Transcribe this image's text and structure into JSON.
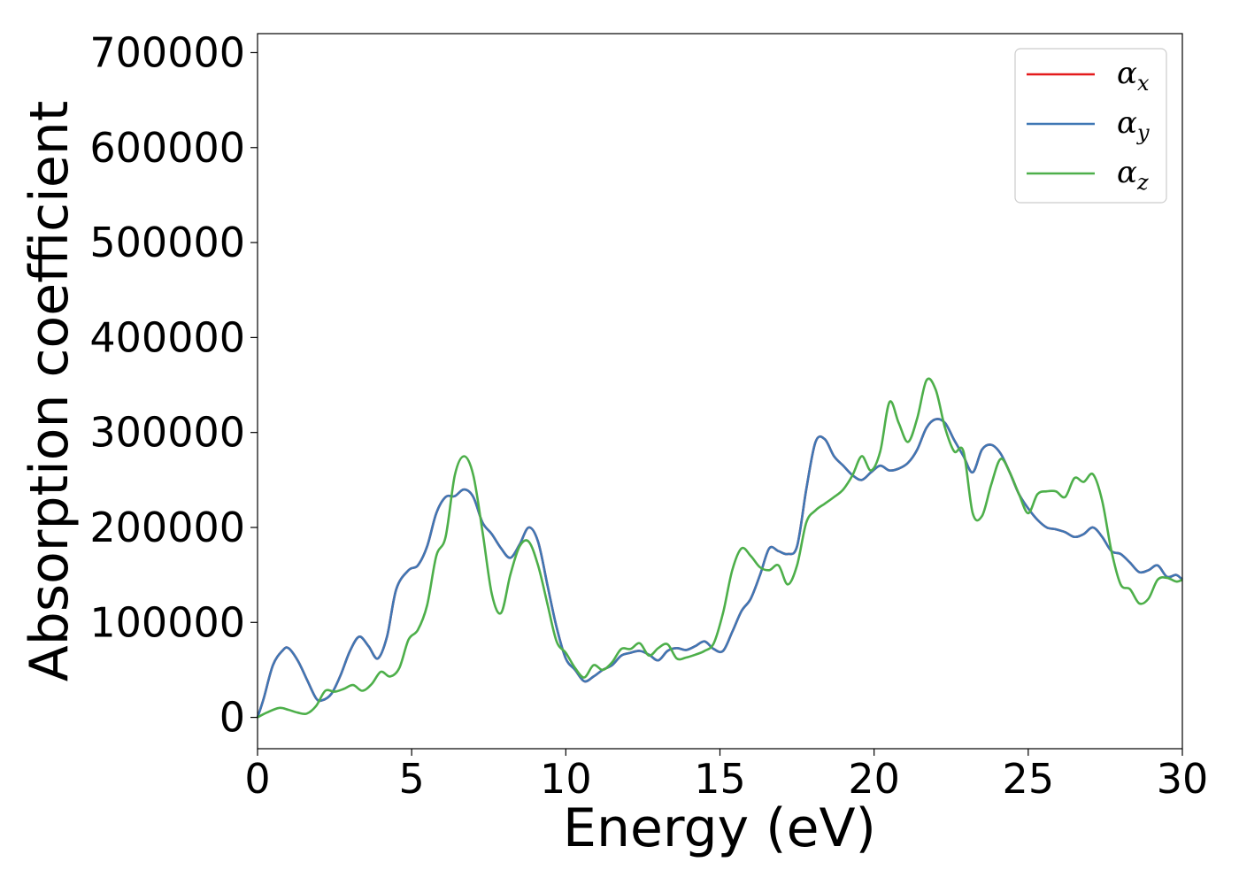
{
  "chart_data": {
    "type": "line",
    "xlabel": "Energy (eV)",
    "ylabel": "Absorption coefficient",
    "xlim": [
      0,
      30
    ],
    "ylim": [
      -33000,
      720000
    ],
    "xticks": [
      0,
      5,
      10,
      15,
      20,
      25,
      30
    ],
    "xtick_labels": [
      "0",
      "5",
      "10",
      "15",
      "20",
      "25",
      "30"
    ],
    "yticks": [
      0,
      100000,
      200000,
      300000,
      400000,
      500000,
      600000,
      700000
    ],
    "ytick_labels": [
      "0",
      "100000",
      "200000",
      "300000",
      "400000",
      "500000",
      "600000",
      "700000"
    ],
    "grid": false,
    "legend_position": "top-right",
    "series": [
      {
        "name": "α_x",
        "symbol": "α",
        "subscript": "x",
        "color": "#e41a1c",
        "x": [
          0,
          0.2,
          0.5,
          0.8,
          1.0,
          1.3,
          1.6,
          1.9,
          2.1,
          2.4,
          2.7,
          3.0,
          3.3,
          3.6,
          3.9,
          4.2,
          4.5,
          4.9,
          5.2,
          5.5,
          5.8,
          6.1,
          6.4,
          6.7,
          7.0,
          7.3,
          7.6,
          7.9,
          8.2,
          8.5,
          8.8,
          9.1,
          9.4,
          9.7,
          10.0,
          10.3,
          10.6,
          10.9,
          11.2,
          11.5,
          11.8,
          12.1,
          12.4,
          12.7,
          13.0,
          13.3,
          13.6,
          13.9,
          14.2,
          14.5,
          14.8,
          15.1,
          15.4,
          15.7,
          16.0,
          16.3,
          16.6,
          16.9,
          17.2,
          17.5,
          17.8,
          18.1,
          18.4,
          18.7,
          19.0,
          19.3,
          19.6,
          19.9,
          20.2,
          20.5,
          20.8,
          21.1,
          21.4,
          21.7,
          22.0,
          22.3,
          22.6,
          22.9,
          23.2,
          23.5,
          23.8,
          24.1,
          24.4,
          24.7,
          25.0,
          25.3,
          25.6,
          25.9,
          26.2,
          26.5,
          26.8,
          27.1,
          27.4,
          27.7,
          28.0,
          28.3,
          28.6,
          28.9,
          29.2,
          29.5,
          29.8,
          30
        ],
        "y": [
          0,
          20000,
          55000,
          70000,
          73000,
          60000,
          40000,
          20000,
          18000,
          25000,
          45000,
          70000,
          85000,
          75000,
          62000,
          85000,
          135000,
          155000,
          160000,
          180000,
          215000,
          232000,
          233000,
          240000,
          232000,
          205000,
          193000,
          178000,
          168000,
          182000,
          200000,
          185000,
          140000,
          95000,
          62000,
          50000,
          38000,
          43000,
          50000,
          55000,
          65000,
          68000,
          70000,
          66000,
          60000,
          70000,
          73000,
          71000,
          75000,
          80000,
          72000,
          70000,
          90000,
          112000,
          125000,
          150000,
          178000,
          175000,
          172000,
          180000,
          240000,
          290000,
          293000,
          275000,
          265000,
          255000,
          250000,
          258000,
          265000,
          260000,
          262000,
          268000,
          282000,
          305000,
          314000,
          310000,
          292000,
          275000,
          258000,
          282000,
          287000,
          278000,
          258000,
          235000,
          220000,
          208000,
          200000,
          198000,
          195000,
          190000,
          193000,
          200000,
          190000,
          175000,
          172000,
          163000,
          153000,
          155000,
          160000,
          148000,
          150000,
          145000
        ]
      },
      {
        "name": "α_y",
        "symbol": "α",
        "subscript": "y",
        "color": "#3f77b4",
        "x": [
          0,
          0.2,
          0.5,
          0.8,
          1.0,
          1.3,
          1.6,
          1.9,
          2.1,
          2.4,
          2.7,
          3.0,
          3.3,
          3.6,
          3.9,
          4.2,
          4.5,
          4.9,
          5.2,
          5.5,
          5.8,
          6.1,
          6.4,
          6.7,
          7.0,
          7.3,
          7.6,
          7.9,
          8.2,
          8.5,
          8.8,
          9.1,
          9.4,
          9.7,
          10.0,
          10.3,
          10.6,
          10.9,
          11.2,
          11.5,
          11.8,
          12.1,
          12.4,
          12.7,
          13.0,
          13.3,
          13.6,
          13.9,
          14.2,
          14.5,
          14.8,
          15.1,
          15.4,
          15.7,
          16.0,
          16.3,
          16.6,
          16.9,
          17.2,
          17.5,
          17.8,
          18.1,
          18.4,
          18.7,
          19.0,
          19.3,
          19.6,
          19.9,
          20.2,
          20.5,
          20.8,
          21.1,
          21.4,
          21.7,
          22.0,
          22.3,
          22.6,
          22.9,
          23.2,
          23.5,
          23.8,
          24.1,
          24.4,
          24.7,
          25.0,
          25.3,
          25.6,
          25.9,
          26.2,
          26.5,
          26.8,
          27.1,
          27.4,
          27.7,
          28.0,
          28.3,
          28.6,
          28.9,
          29.2,
          29.5,
          29.8,
          30
        ],
        "y": [
          0,
          20000,
          55000,
          70000,
          73000,
          60000,
          40000,
          20000,
          18000,
          25000,
          45000,
          70000,
          85000,
          75000,
          62000,
          85000,
          135000,
          155000,
          160000,
          180000,
          215000,
          232000,
          233000,
          240000,
          232000,
          205000,
          193000,
          178000,
          168000,
          182000,
          200000,
          185000,
          140000,
          95000,
          62000,
          50000,
          38000,
          43000,
          50000,
          55000,
          65000,
          68000,
          70000,
          66000,
          60000,
          70000,
          73000,
          71000,
          75000,
          80000,
          72000,
          70000,
          90000,
          112000,
          125000,
          150000,
          178000,
          175000,
          172000,
          180000,
          240000,
          290000,
          293000,
          275000,
          265000,
          255000,
          250000,
          258000,
          265000,
          260000,
          262000,
          268000,
          282000,
          305000,
          314000,
          310000,
          292000,
          275000,
          258000,
          282000,
          287000,
          278000,
          258000,
          235000,
          220000,
          208000,
          200000,
          198000,
          195000,
          190000,
          193000,
          200000,
          190000,
          175000,
          172000,
          163000,
          153000,
          155000,
          160000,
          148000,
          150000,
          145000
        ]
      },
      {
        "name": "α_z",
        "symbol": "α",
        "subscript": "z",
        "color": "#4daf4a",
        "x": [
          0,
          0.3,
          0.7,
          1.0,
          1.3,
          1.6,
          1.9,
          2.2,
          2.5,
          2.8,
          3.1,
          3.4,
          3.7,
          4.0,
          4.3,
          4.6,
          4.9,
          5.2,
          5.5,
          5.8,
          6.1,
          6.4,
          6.7,
          7.0,
          7.3,
          7.6,
          7.9,
          8.2,
          8.5,
          8.8,
          9.1,
          9.4,
          9.7,
          10.0,
          10.3,
          10.6,
          10.9,
          11.2,
          11.5,
          11.8,
          12.1,
          12.4,
          12.7,
          13.0,
          13.3,
          13.6,
          13.9,
          14.2,
          14.5,
          14.8,
          15.1,
          15.4,
          15.7,
          16.0,
          16.3,
          16.6,
          16.9,
          17.2,
          17.5,
          17.8,
          18.1,
          18.4,
          18.7,
          19.0,
          19.3,
          19.6,
          19.9,
          20.2,
          20.5,
          20.8,
          21.1,
          21.4,
          21.7,
          22.0,
          22.3,
          22.6,
          22.9,
          23.2,
          23.5,
          23.8,
          24.1,
          24.4,
          24.7,
          25.0,
          25.3,
          25.6,
          25.9,
          26.2,
          26.5,
          26.8,
          27.1,
          27.4,
          27.7,
          28.0,
          28.3,
          28.6,
          28.9,
          29.2,
          29.5,
          29.8,
          30
        ],
        "y": [
          0,
          5000,
          10000,
          8000,
          5000,
          4000,
          12000,
          28000,
          27000,
          30000,
          34000,
          28000,
          35000,
          48000,
          43000,
          52000,
          82000,
          92000,
          118000,
          170000,
          190000,
          255000,
          275000,
          255000,
          195000,
          130000,
          110000,
          150000,
          180000,
          185000,
          160000,
          120000,
          80000,
          68000,
          52000,
          42000,
          55000,
          50000,
          58000,
          72000,
          72000,
          78000,
          65000,
          73000,
          77000,
          62000,
          63000,
          66000,
          70000,
          78000,
          110000,
          155000,
          178000,
          170000,
          158000,
          155000,
          160000,
          140000,
          160000,
          205000,
          218000,
          225000,
          232000,
          240000,
          255000,
          275000,
          260000,
          280000,
          332000,
          310000,
          290000,
          315000,
          355000,
          345000,
          305000,
          280000,
          280000,
          215000,
          212000,
          245000,
          272000,
          258000,
          235000,
          215000,
          235000,
          238000,
          238000,
          232000,
          252000,
          248000,
          256000,
          228000,
          175000,
          140000,
          135000,
          120000,
          125000,
          145000,
          147000,
          143000,
          145000
        ]
      }
    ]
  }
}
